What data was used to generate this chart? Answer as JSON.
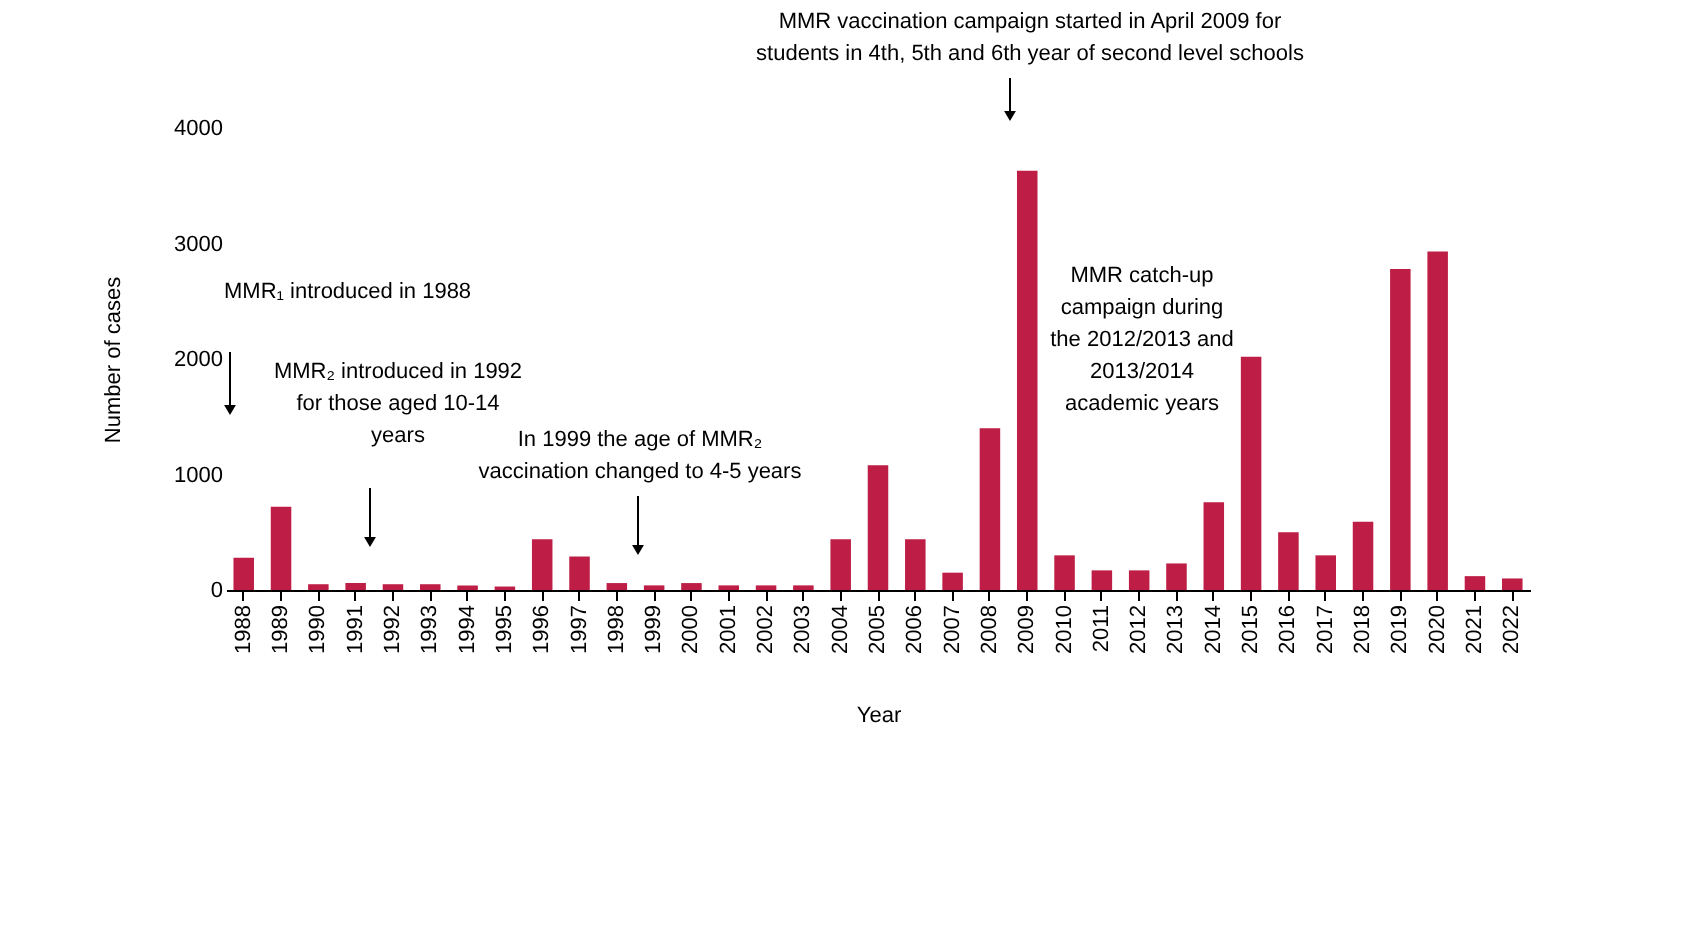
{
  "chart_data": {
    "type": "bar",
    "xlabel": "Year",
    "ylabel": "Number of cases",
    "color": "#be1e45",
    "categories": [
      "1988",
      "1989",
      "1990",
      "1991",
      "1992",
      "1993",
      "1994",
      "1995",
      "1996",
      "1997",
      "1998",
      "1999",
      "2000",
      "2001",
      "2002",
      "2003",
      "2004",
      "2005",
      "2006",
      "2007",
      "2008",
      "2009",
      "2010",
      "2011",
      "2012",
      "2013",
      "2014",
      "2015",
      "2016",
      "2017",
      "2018",
      "2019",
      "2020",
      "2021",
      "2022"
    ],
    "values": [
      280,
      720,
      50,
      60,
      50,
      50,
      40,
      30,
      440,
      290,
      60,
      40,
      60,
      40,
      40,
      40,
      440,
      1080,
      440,
      150,
      1400,
      3630,
      300,
      170,
      170,
      230,
      760,
      2020,
      500,
      300,
      590,
      2780,
      2930,
      120,
      100
    ],
    "ylim": [
      0,
      4000
    ],
    "yticks": [
      0,
      1000,
      2000,
      3000,
      4000
    ],
    "grid": false,
    "annotations": [
      "MMR₁ introduced in 1988",
      "MMR₂ introduced in 1992\nfor those aged 10-14\nyears",
      "In 1999 the age of MMR₂\nvaccination  changed to 4-5 years",
      "MMR vaccination campaign started in April 2009 for\nstudents in 4th, 5th and 6th year of second level schools",
      "MMR catch-up\ncampaign during\nthe 2012/2013 and\n2013/2014\nacademic years"
    ]
  }
}
